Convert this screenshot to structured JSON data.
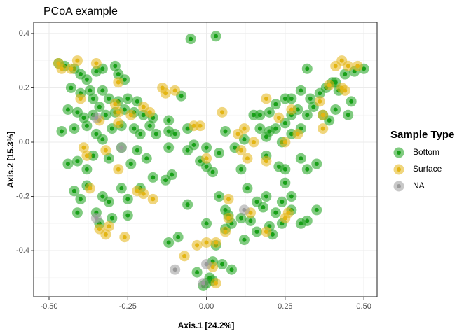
{
  "chart_data": {
    "type": "scatter",
    "title": "PCoA example",
    "x_label": "Axis.1   [24.2%]",
    "y_label": "Axis.2   [15.3%]",
    "legend_title": "Sample Type",
    "legend_position": "right",
    "grid": true,
    "xlim": [
      -0.549,
      0.542
    ],
    "ylim": [
      -0.57,
      0.441
    ],
    "xticks": [
      {
        "value": -0.5,
        "label": "-0.50"
      },
      {
        "value": -0.25,
        "label": "-0.25"
      },
      {
        "value": 0,
        "label": "0.00"
      },
      {
        "value": 0.25,
        "label": "0.25"
      },
      {
        "value": 0.5,
        "label": "0.50"
      }
    ],
    "yticks": [
      {
        "value": -0.4,
        "label": "-0.4"
      },
      {
        "value": -0.2,
        "label": "-0.2"
      },
      {
        "value": 0,
        "label": "0.0"
      },
      {
        "value": 0.2,
        "label": "0.2"
      },
      {
        "value": 0.4,
        "label": "0.4"
      }
    ],
    "series": [
      {
        "name": "Bottom",
        "color": "#18a018",
        "x": [
          -0.47,
          -0.45,
          -0.42,
          -0.4,
          -0.38,
          -0.35,
          -0.33,
          -0.29,
          -0.28,
          -0.26,
          -0.43,
          -0.4,
          -0.37,
          -0.36,
          -0.33,
          -0.31,
          -0.28,
          -0.25,
          -0.22,
          -0.44,
          -0.41,
          -0.39,
          -0.36,
          -0.34,
          -0.32,
          -0.29,
          -0.26,
          -0.23,
          -0.2,
          -0.17,
          -0.12,
          -0.46,
          -0.42,
          -0.38,
          -0.35,
          -0.33,
          -0.3,
          -0.27,
          -0.23,
          -0.21,
          -0.18,
          -0.16,
          -0.12,
          -0.44,
          -0.41,
          -0.38,
          -0.36,
          -0.31,
          -0.27,
          -0.24,
          -0.22,
          -0.19,
          -0.12,
          -0.42,
          -0.4,
          -0.38,
          -0.33,
          -0.31,
          -0.27,
          -0.25,
          -0.21,
          -0.17,
          -0.13,
          -0.11,
          -0.41,
          -0.35,
          -0.34,
          -0.3,
          -0.25,
          -0.12,
          -0.09,
          -0.06,
          -0.06,
          -0.04,
          -0.02,
          0.0,
          0.02,
          0.04,
          0.06,
          0.09,
          0.12,
          0.11,
          0.13,
          0.16,
          0.18,
          0.14,
          0.11,
          0.06,
          0.03,
          0.05,
          0.08,
          0.01,
          0.02,
          -0.01,
          0.0,
          -0.03,
          0.02,
          0.04,
          0.0,
          -0.06,
          -0.1,
          -0.08,
          -0.05,
          0.03,
          0.15,
          0.17,
          0.2,
          0.22,
          0.25,
          0.27,
          0.3,
          0.33,
          0.36,
          0.38,
          0.4,
          0.42,
          0.46,
          0.5,
          0.47,
          0.44,
          0.41,
          0.32,
          0.29,
          0.27,
          0.25,
          0.22,
          0.2,
          0.17,
          0.19,
          0.24,
          0.27,
          0.3,
          0.32,
          0.34,
          0.37,
          0.39,
          0.41,
          0.45,
          0.19,
          0.23,
          0.25,
          0.3,
          0.32,
          0.35,
          0.19,
          0.22,
          0.24,
          0.27,
          0.3,
          0.32,
          0.35,
          0.25,
          0.27,
          0.12,
          0.16,
          0.2,
          0.08,
          0.06,
          0.24,
          0.21,
          0.0,
          0.07
        ],
        "values": [
          0.29,
          0.28,
          0.27,
          0.25,
          0.23,
          0.26,
          0.27,
          0.28,
          0.25,
          0.23,
          0.2,
          0.18,
          0.19,
          0.16,
          0.19,
          0.16,
          0.15,
          0.16,
          0.15,
          0.12,
          0.11,
          0.09,
          0.1,
          0.13,
          0.1,
          0.11,
          0.12,
          0.11,
          0.1,
          0.09,
          0.08,
          0.04,
          0.05,
          0.06,
          0.03,
          0.01,
          0.05,
          0.06,
          0.05,
          0.03,
          0.06,
          0.03,
          0.04,
          -0.08,
          -0.07,
          -0.1,
          -0.05,
          -0.06,
          -0.02,
          -0.08,
          -0.03,
          -0.06,
          -0.02,
          -0.18,
          -0.21,
          -0.16,
          -0.2,
          -0.22,
          -0.17,
          -0.21,
          -0.17,
          -0.13,
          -0.14,
          -0.12,
          -0.26,
          -0.26,
          -0.3,
          -0.28,
          -0.27,
          -0.37,
          -0.35,
          -0.23,
          0.05,
          -0.01,
          -0.07,
          -0.09,
          -0.11,
          -0.04,
          0.04,
          -0.02,
          0.01,
          -0.1,
          -0.17,
          -0.22,
          -0.24,
          -0.29,
          -0.28,
          -0.32,
          -0.38,
          -0.45,
          -0.47,
          -0.5,
          -0.51,
          -0.53,
          -0.52,
          -0.48,
          -0.44,
          -0.2,
          -0.02,
          -0.03,
          0.03,
          0.17,
          0.38,
          0.39,
          0.1,
          0.1,
          0.11,
          0.14,
          0.16,
          0.16,
          0.19,
          0.16,
          0.18,
          0.2,
          0.22,
          0.19,
          0.15,
          0.27,
          0.26,
          0.25,
          0.22,
          0.27,
          0.12,
          0.1,
          0.07,
          0.05,
          0.04,
          0.05,
          0.02,
          0.0,
          0.03,
          0.05,
          0.1,
          0.13,
          0.1,
          0.08,
          0.12,
          0.1,
          -0.05,
          -0.09,
          -0.1,
          -0.06,
          -0.1,
          -0.08,
          -0.2,
          -0.26,
          -0.3,
          -0.25,
          -0.3,
          -0.29,
          -0.25,
          -0.15,
          -0.2,
          -0.36,
          -0.33,
          -0.31,
          -0.3,
          -0.25,
          -0.22,
          -0.34,
          -0.3,
          -0.27
        ]
      },
      {
        "name": "Surface",
        "color": "#e3b514",
        "x": [
          -0.47,
          -0.46,
          -0.43,
          -0.41,
          -0.35,
          -0.28,
          -0.4,
          -0.34,
          -0.28,
          -0.2,
          -0.18,
          -0.24,
          -0.39,
          -0.38,
          -0.32,
          -0.37,
          -0.28,
          -0.34,
          -0.32,
          -0.31,
          -0.26,
          -0.22,
          -0.2,
          -0.17,
          -0.28,
          -0.29,
          -0.1,
          -0.14,
          -0.13,
          -0.04,
          -0.02,
          0.05,
          0.1,
          0.12,
          0.11,
          0.13,
          0.15,
          0.19,
          0.25,
          0.29,
          0.37,
          0.37,
          0.36,
          0.27,
          0.19,
          0.23,
          0.43,
          0.41,
          0.45,
          0.44,
          0.43,
          0.48,
          0.39,
          0.26,
          0.25,
          0.19,
          0.14,
          0.07,
          0.06,
          0.03,
          0.02,
          0.0,
          -0.03,
          -0.07,
          0.07,
          0.0,
          0.03
        ],
        "values": [
          0.29,
          0.27,
          0.27,
          0.3,
          0.29,
          0.22,
          0.16,
          0.08,
          0.07,
          0.13,
          0.11,
          0.1,
          -0.02,
          -0.05,
          -0.03,
          -0.17,
          -0.1,
          -0.32,
          -0.34,
          -0.31,
          -0.35,
          -0.18,
          -0.19,
          -0.21,
          0.11,
          0.14,
          0.19,
          0.2,
          0.18,
          0.06,
          0.06,
          0.11,
          0.03,
          0.05,
          -0.03,
          -0.06,
          0.0,
          -0.07,
          0.0,
          0.03,
          0.1,
          0.05,
          0.15,
          0.12,
          0.16,
          0.09,
          0.3,
          0.28,
          0.28,
          0.19,
          0.2,
          0.28,
          0.21,
          -0.26,
          -0.28,
          -0.33,
          -0.26,
          -0.28,
          -0.33,
          -0.37,
          -0.46,
          -0.37,
          -0.38,
          -0.42,
          -0.21,
          -0.06,
          -0.52
        ]
      },
      {
        "name": "NA",
        "color": "#9a9a9a",
        "x": [
          -0.35,
          -0.35,
          -0.27,
          -0.1,
          0.0,
          -0.01,
          0.12
        ],
        "values": [
          0.09,
          -0.28,
          -0.02,
          -0.47,
          -0.45,
          -0.52,
          -0.25
        ]
      }
    ]
  }
}
